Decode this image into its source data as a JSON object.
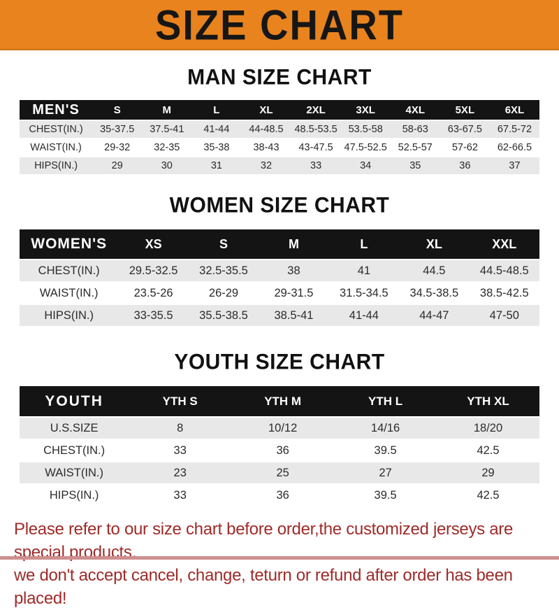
{
  "banner": {
    "title": "SIZE CHART"
  },
  "colors": {
    "banner_bg": "#E8831E",
    "table_header_bg": "#141414",
    "row_stripe": "#E8E8E8",
    "footer_text": "#9E2B28",
    "bottom_strip": "#CF8F8F"
  },
  "chart_data": [
    {
      "key": "men",
      "type": "table",
      "title": "MAN SIZE CHART",
      "header": [
        "MEN'S",
        "S",
        "M",
        "L",
        "XL",
        "2XL",
        "3XL",
        "4XL",
        "5XL",
        "6XL"
      ],
      "rows": [
        {
          "label": "CHEST(IN.)",
          "values": [
            "35-37.5",
            "37.5-41",
            "41-44",
            "44-48.5",
            "48.5-53.5",
            "53.5-58",
            "58-63",
            "63-67.5",
            "67.5-72"
          ]
        },
        {
          "label": "WAIST(IN.)",
          "values": [
            "29-32",
            "32-35",
            "35-38",
            "38-43",
            "43-47.5",
            "47.5-52.5",
            "52.5-57",
            "57-62",
            "62-66.5"
          ]
        },
        {
          "label": "HIPS(IN.)",
          "values": [
            "29",
            "30",
            "31",
            "32",
            "33",
            "34",
            "35",
            "36",
            "37"
          ]
        }
      ]
    },
    {
      "key": "women",
      "type": "table",
      "title": "WOMEN SIZE CHART",
      "header": [
        "WOMEN'S",
        "XS",
        "S",
        "M",
        "L",
        "XL",
        "XXL"
      ],
      "rows": [
        {
          "label": "CHEST(IN.)",
          "values": [
            "29.5-32.5",
            "32.5-35.5",
            "38",
            "41",
            "44.5",
            "44.5-48.5"
          ]
        },
        {
          "label": "WAIST(IN.)",
          "values": [
            "23.5-26",
            "26-29",
            "29-31.5",
            "31.5-34.5",
            "34.5-38.5",
            "38.5-42.5"
          ]
        },
        {
          "label": "HIPS(IN.)",
          "values": [
            "33-35.5",
            "35.5-38.5",
            "38.5-41",
            "41-44",
            "44-47",
            "47-50"
          ]
        }
      ]
    },
    {
      "key": "youth",
      "type": "table",
      "title": "YOUTH SIZE CHART",
      "header": [
        "YOUTH",
        "YTH S",
        "YTH M",
        "YTH L",
        "YTH XL"
      ],
      "rows": [
        {
          "label": "U.S.SIZE",
          "values": [
            "8",
            "10/12",
            "14/16",
            "18/20"
          ]
        },
        {
          "label": "CHEST(IN.)",
          "values": [
            "33",
            "36",
            "39.5",
            "42.5"
          ]
        },
        {
          "label": "WAIST(IN.)",
          "values": [
            "23",
            "25",
            "27",
            "29"
          ]
        },
        {
          "label": "HIPS(IN.)",
          "values": [
            "33",
            "36",
            "39.5",
            "42.5"
          ]
        }
      ]
    }
  ],
  "footer": {
    "line1": "Please refer to our size chart before order,the customized jerseys are special products,",
    "line2": "we don't accept cancel, change, teturn or refund after order has been placed!"
  }
}
